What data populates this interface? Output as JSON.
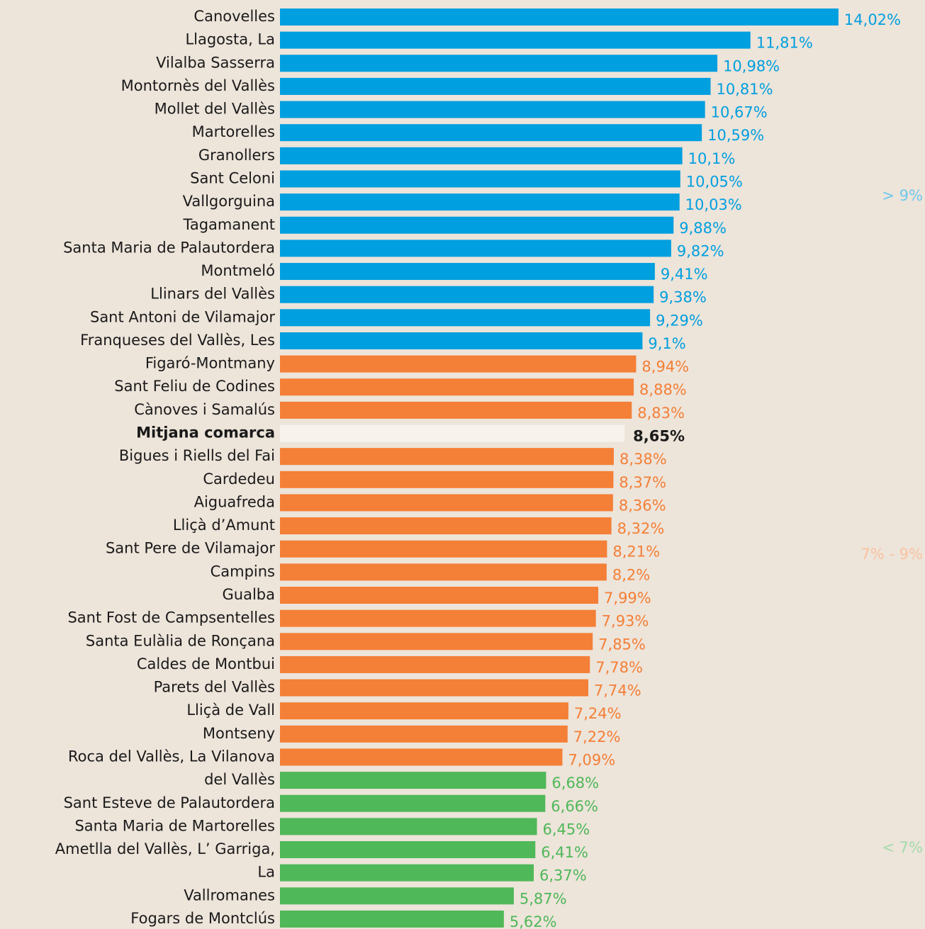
{
  "chart_data": {
    "type": "bar",
    "orientation": "horizontal",
    "categories": [
      "Canovelles",
      "Llagosta, La",
      "Vilalba Sasserra",
      "Montornès del Vallès",
      "Mollet del Vallès",
      "Martorelles",
      "Granollers",
      "Sant Celoni",
      "Vallgorguina",
      "Tagamanent",
      "Santa Maria de Palautordera",
      "Montmeló",
      "Llinars del Vallès",
      "Sant Antoni de Vilamajor",
      "Franqueses del Vallès, Les",
      "Figaró-Montmany",
      "Sant Feliu de Codines",
      "Cànoves i Samalús",
      "Mitjana comarca",
      "Bigues i Riells del Fai",
      "Cardedeu",
      "Aiguafreda",
      "Lliçà d’Amunt",
      "Sant Pere de Vilamajor",
      "Campins",
      "Gualba",
      "Sant Fost de Campsentelles",
      "Santa Eulàlia de Ronçana",
      "Caldes de Montbui",
      "Parets del Vallès",
      "Lliçà de Vall",
      "Montseny",
      "Roca del Vallès, La Vilanova",
      "del Vallès",
      "Sant Esteve de Palautordera",
      "Santa Maria de Martorelles",
      "Ametlla del Vallès, L’ Garriga,",
      "La",
      "Vallromanes",
      "Fogars de Montclús"
    ],
    "values": [
      14.02,
      11.81,
      10.98,
      10.81,
      10.67,
      10.59,
      10.1,
      10.05,
      10.03,
      9.88,
      9.82,
      9.41,
      9.38,
      9.29,
      9.1,
      8.94,
      8.88,
      8.83,
      8.65,
      8.38,
      8.37,
      8.36,
      8.32,
      8.21,
      8.2,
      7.99,
      7.93,
      7.85,
      7.78,
      7.74,
      7.24,
      7.22,
      7.09,
      6.68,
      6.66,
      6.45,
      6.41,
      6.37,
      5.87,
      5.62
    ],
    "value_labels": [
      "14,02%",
      "11,81%",
      "10,98%",
      "10,81%",
      "10,67%",
      "10,59%",
      "10,1%",
      "10,05%",
      "10,03%",
      "9,88%",
      "9,82%",
      "9,41%",
      "9,38%",
      "9,29%",
      "9,1%",
      "8,94%",
      "8,88%",
      "8,83%",
      "8,65%",
      "8,38%",
      "8,37%",
      "8,36%",
      "8,32%",
      "8,21%",
      "8,2%",
      "7,99%",
      "7,93%",
      "7,85%",
      "7,78%",
      "7,74%",
      "7,24%",
      "7,22%",
      "7,09%",
      "6,68%",
      "6,66%",
      "6,45%",
      "6,41%",
      "6,37%",
      "5,87%",
      "5,62%"
    ],
    "colors": [
      "#009fdf",
      "#009fdf",
      "#009fdf",
      "#009fdf",
      "#009fdf",
      "#009fdf",
      "#009fdf",
      "#009fdf",
      "#009fdf",
      "#009fdf",
      "#009fdf",
      "#009fdf",
      "#009fdf",
      "#009fdf",
      "#009fdf",
      "#f47f36",
      "#f47f36",
      "#f47f36",
      "#f7f2eb",
      "#f47f36",
      "#f47f36",
      "#f47f36",
      "#f47f36",
      "#f47f36",
      "#f47f36",
      "#f47f36",
      "#f47f36",
      "#f47f36",
      "#f47f36",
      "#f47f36",
      "#f47f36",
      "#f47f36",
      "#f47f36",
      "#4fb858",
      "#4fb858",
      "#4fb858",
      "#4fb858",
      "#4fb858",
      "#4fb858",
      "#4fb858"
    ],
    "emphasis": [
      "Mitjana comarca"
    ],
    "annotations": [
      {
        "text": "> 9%",
        "color": "#6fc7ee"
      },
      {
        "text": "7% - 9%",
        "color": "#f9c2a0"
      },
      {
        "text": "< 7%",
        "color": "#a3dba9"
      }
    ]
  }
}
